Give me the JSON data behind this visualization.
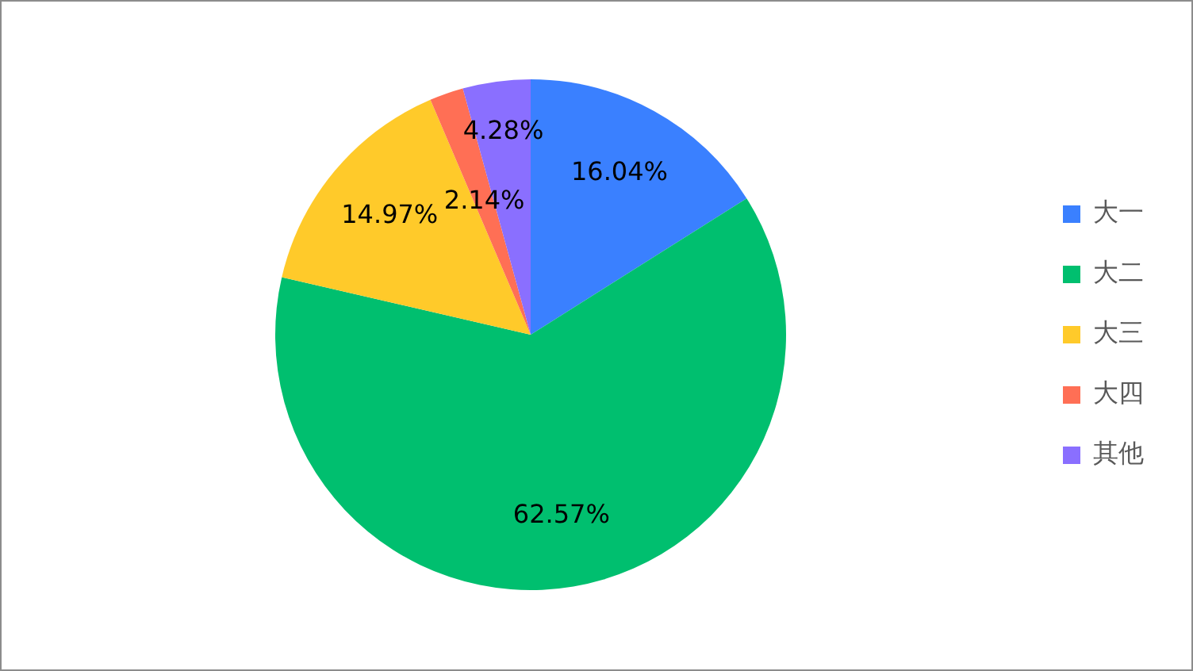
{
  "chart_data": {
    "type": "pie",
    "categories": [
      "大一",
      "大二",
      "大三",
      "大四",
      "其他"
    ],
    "values": [
      16.04,
      62.57,
      14.97,
      2.14,
      4.28
    ],
    "colors": [
      "#3a80ff",
      "#00bf6f",
      "#ffca2a",
      "#ff6f55",
      "#8a6fff"
    ],
    "value_labels": [
      "16.04%",
      "62.57%",
      "14.97%",
      "2.14%",
      "4.28%"
    ],
    "legend": "right"
  }
}
